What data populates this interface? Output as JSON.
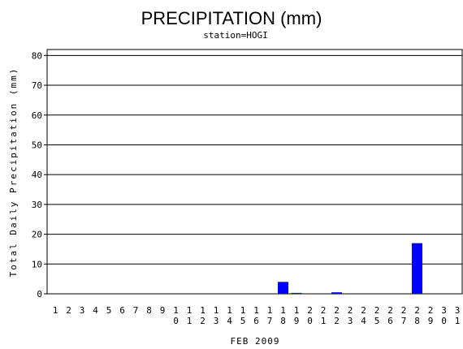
{
  "chart_data": {
    "type": "bar",
    "title": "PRECIPITATION (mm)",
    "subtitle": "station=HOGI",
    "y_label": "Total Daily Precipitation (mm)",
    "x_label": "FEB 2009",
    "categories": [
      "1",
      "2",
      "3",
      "4",
      "5",
      "6",
      "7",
      "8",
      "9",
      "10",
      "11",
      "12",
      "13",
      "14",
      "15",
      "16",
      "17",
      "18",
      "19",
      "20",
      "21",
      "22",
      "23",
      "24",
      "25",
      "26",
      "27",
      "28",
      "29",
      "30",
      "31"
    ],
    "values": [
      0,
      0,
      0,
      0,
      0,
      0,
      0,
      0,
      0,
      0,
      0,
      0,
      0,
      0,
      0,
      0,
      0,
      4,
      0.3,
      0,
      0,
      0.5,
      0,
      0,
      0,
      0,
      0,
      17,
      0,
      0,
      0
    ],
    "color": "#0000ff",
    "ylim": [
      0,
      82
    ],
    "yticks": [
      0,
      10,
      20,
      30,
      40,
      50,
      60,
      70,
      80
    ],
    "grid": true
  }
}
